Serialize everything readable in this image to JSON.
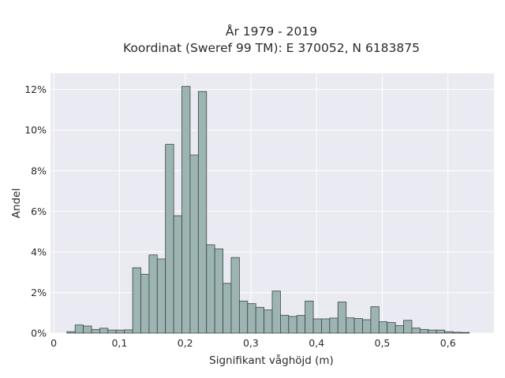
{
  "chart_data": {
    "type": "bar",
    "title_lines": [
      "År 1979 - 2019",
      "Koordinat (Sweref 99 TM): E 370052, N 6183875"
    ],
    "xlabel": "Signifikant våghöjd (m)",
    "ylabel": "Andel",
    "xlim": [
      -0.005,
      0.67
    ],
    "ylim": [
      0,
      12.8
    ],
    "x_ticks": [
      0,
      0.1,
      0.2,
      0.3,
      0.4,
      0.5,
      0.6
    ],
    "x_tick_labels": [
      "0",
      "0,1",
      "0,2",
      "0,3",
      "0,4",
      "0,5",
      "0,6"
    ],
    "y_ticks": [
      0,
      2,
      4,
      6,
      8,
      10,
      12
    ],
    "y_tick_labels": [
      "0%",
      "2%",
      "4%",
      "6%",
      "8%",
      "10%",
      "12%"
    ],
    "grid": true,
    "bin_width": 0.0125,
    "bins_start": [
      0.02,
      0.0325,
      0.045,
      0.0575,
      0.07,
      0.0825,
      0.095,
      0.1075,
      0.12,
      0.1325,
      0.145,
      0.1575,
      0.17,
      0.1825,
      0.195,
      0.2075,
      0.22,
      0.2325,
      0.245,
      0.2575,
      0.27,
      0.2825,
      0.295,
      0.3075,
      0.32,
      0.3325,
      0.345,
      0.3575,
      0.37,
      0.3825,
      0.395,
      0.4075,
      0.42,
      0.4325,
      0.445,
      0.4575,
      0.47,
      0.4825,
      0.495,
      0.5075,
      0.52,
      0.5325,
      0.545,
      0.5575,
      0.57,
      0.5825,
      0.595,
      0.6075,
      0.62
    ],
    "values": [
      0.07,
      0.4,
      0.35,
      0.18,
      0.24,
      0.15,
      0.15,
      0.16,
      3.22,
      2.9,
      3.85,
      3.65,
      9.3,
      5.78,
      12.15,
      8.77,
      11.9,
      4.35,
      4.15,
      2.45,
      3.72,
      1.58,
      1.45,
      1.27,
      1.14,
      2.07,
      0.88,
      0.82,
      0.87,
      1.58,
      0.7,
      0.7,
      0.74,
      1.53,
      0.75,
      0.72,
      0.66,
      1.3,
      0.56,
      0.52,
      0.37,
      0.63,
      0.25,
      0.18,
      0.15,
      0.15,
      0.07,
      0.04,
      0.03
    ],
    "colors": {
      "bar_fill": "#9db5b2",
      "bar_edge": "#3b4444",
      "plot_background": "#eaeaf2",
      "grid": "#ffffff"
    }
  }
}
